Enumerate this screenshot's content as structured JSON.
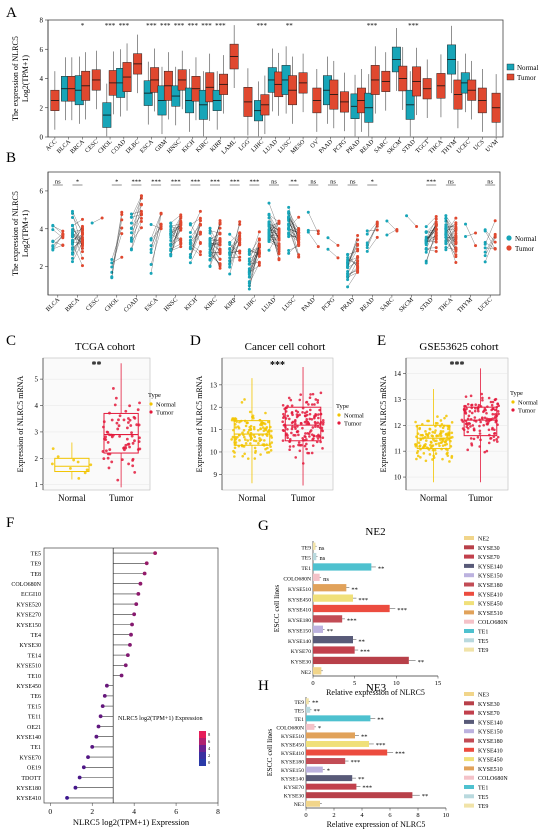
{
  "colors": {
    "normal": "#17a5b8",
    "tumor": "#e0482f",
    "tcga_normal": "#f2c400",
    "tcga_tumor": "#e31a3c",
    "cell_normal": "#f2c400",
    "cell_tumor": "#e31a3c",
    "lollipop": "#c8184a"
  },
  "panel_labels": {
    "a": "A",
    "b": "B",
    "c": "C",
    "d": "D",
    "e": "E",
    "f": "F",
    "g": "G",
    "h": "H"
  },
  "chart_data": [
    {
      "id": "A",
      "type": "box",
      "ylabel": "The expression of NLRC5",
      "ylabel2": "Log2(TPM+1)",
      "ylim": [
        0,
        8
      ],
      "yticks": [
        0,
        2,
        4,
        6,
        8
      ],
      "legend": {
        "normal": "Normal",
        "tumor": "Tumor",
        "position": "right"
      },
      "categories": [
        "ACC",
        "BLCA",
        "BRCA",
        "CESC",
        "CHOL",
        "COAD",
        "DLBC",
        "ESCA",
        "GBM",
        "HNSC",
        "KICH",
        "KIRC",
        "KIRP",
        "LAML",
        "LGG",
        "LIHC",
        "LUAD",
        "LUSC",
        "MESO",
        "OV",
        "PAAD",
        "PCPG",
        "PRAD",
        "READ",
        "SARC",
        "SKCM",
        "STAD",
        "TGCT",
        "THCA",
        "THYM",
        "UCEC",
        "UCS",
        "UVM"
      ],
      "normal_median": [
        null,
        3.3,
        3.2,
        null,
        1.5,
        3.7,
        null,
        3.0,
        2.5,
        2.8,
        2.5,
        2.2,
        2.5,
        null,
        null,
        1.8,
        3.9,
        3.9,
        null,
        null,
        3.2,
        null,
        2.1,
        2.0,
        null,
        5.3,
        2.2,
        null,
        null,
        5.3,
        3.7,
        null,
        null
      ],
      "tumor_median": [
        2.5,
        3.3,
        3.5,
        3.9,
        3.7,
        4.1,
        5.0,
        3.9,
        3.5,
        3.9,
        3.3,
        3.4,
        3.6,
        5.5,
        2.4,
        2.2,
        3.6,
        3.2,
        3.7,
        2.5,
        2.9,
        2.4,
        2.5,
        3.9,
        3.8,
        4.0,
        3.8,
        3.3,
        3.5,
        2.9,
        3.2,
        2.5,
        2.0
      ],
      "significance": [
        {
          "cat": "BRCA",
          "label": "*"
        },
        {
          "cat": "CHOL",
          "label": "***"
        },
        {
          "cat": "COAD",
          "label": "***"
        },
        {
          "cat": "ESCA",
          "label": "***"
        },
        {
          "cat": "GBM",
          "label": "***"
        },
        {
          "cat": "HNSC",
          "label": "***"
        },
        {
          "cat": "KICH",
          "label": "***"
        },
        {
          "cat": "KIRC",
          "label": "***"
        },
        {
          "cat": "KIRP",
          "label": "***"
        },
        {
          "cat": "LIHC",
          "label": "***"
        },
        {
          "cat": "LUSC",
          "label": "**"
        },
        {
          "cat": "READ",
          "label": "***"
        },
        {
          "cat": "STAD",
          "label": "***"
        }
      ]
    },
    {
      "id": "B",
      "type": "paired",
      "ylabel": "The expression of NLRC5",
      "ylabel2": "Log2(TPM+1)",
      "ylim": [
        0.5,
        7
      ],
      "yticks": [
        2,
        4,
        6
      ],
      "legend": {
        "normal": "Normal",
        "tumor": "Tumor",
        "position": "right"
      },
      "categories": [
        "BLCA",
        "BRCA",
        "CESC",
        "CHOL",
        "COAD",
        "ESCA",
        "HNSC",
        "KICH",
        "KIRC",
        "KIRP",
        "LIHC",
        "LUAD",
        "LUSC",
        "PAAD",
        "PCPG",
        "PRAD",
        "READ",
        "SARC",
        "SKCM",
        "STAD",
        "THCA",
        "THYM",
        "UCEC"
      ],
      "normal_center": [
        3.4,
        3.4,
        3.0,
        2.0,
        4.0,
        3.0,
        3.5,
        3.3,
        3.0,
        2.7,
        2.0,
        3.9,
        4.0,
        4.2,
        3.0,
        2.2,
        3.0,
        4.2,
        3.6,
        3.3,
        3.8,
        4.0,
        3.2
      ],
      "tumor_center": [
        3.4,
        3.6,
        3.8,
        3.8,
        4.8,
        4.0,
        3.9,
        3.8,
        3.2,
        3.2,
        2.7,
        3.6,
        3.4,
        3.2,
        2.5,
        2.5,
        4.0,
        4.2,
        3.8,
        4.0,
        3.4,
        3.8,
        3.2
      ],
      "pairs": [
        9,
        25,
        1,
        6,
        12,
        8,
        22,
        16,
        30,
        18,
        22,
        35,
        27,
        3,
        2,
        20,
        6,
        2,
        1,
        26,
        28,
        2,
        8
      ],
      "significance": [
        "ns",
        "*",
        "",
        "*",
        "***",
        "***",
        "***",
        "***",
        "***",
        "***",
        "***",
        "ns",
        "**",
        "ns",
        "ns",
        "ns",
        "*",
        "",
        "",
        "***",
        "ns",
        "",
        "ns"
      ]
    },
    {
      "id": "C",
      "type": "box",
      "title": "TCGA cohort",
      "ylabel": "Expression of NLRC5 mRNA",
      "categories": [
        "Normal",
        "Tumor"
      ],
      "yticks": [
        1,
        2,
        3,
        4,
        5
      ],
      "ylim": [
        0.8,
        5.8
      ],
      "box": [
        {
          "q1": 1.5,
          "median": 1.7,
          "q3": 2.0,
          "min": 1.2,
          "max": 2.6
        },
        {
          "q1": 2.2,
          "median": 2.9,
          "q3": 3.7,
          "min": 0.9,
          "max": 5.6
        }
      ],
      "n": [
        10,
        70
      ],
      "legend_title": "Type",
      "legend": [
        "Normal",
        "Tumor"
      ],
      "significance": "**"
    },
    {
      "id": "D",
      "type": "box",
      "title": "Cancer cell cohort",
      "ylabel": "Expression of NLRC5 mRNA",
      "categories": [
        "Normal",
        "Tumor"
      ],
      "yticks": [
        9,
        10,
        11,
        12,
        13
      ],
      "ylim": [
        8.3,
        14.2
      ],
      "box": [
        {
          "q1": 10.3,
          "median": 10.8,
          "q3": 11.4,
          "min": 8.6,
          "max": 13.3
        },
        {
          "q1": 10.5,
          "median": 11.2,
          "q3": 12.0,
          "min": 8.5,
          "max": 13.8
        }
      ],
      "n": [
        130,
        160
      ],
      "legend_title": "Type",
      "legend": [
        "Normal",
        "Tumor"
      ],
      "significance": "***"
    },
    {
      "id": "E",
      "type": "box",
      "title": "GSE53625 cohort",
      "ylabel": "Expression of NLRC5 mRNA",
      "categories": [
        "Normal",
        "Tumor"
      ],
      "yticks": [
        10,
        11,
        12,
        13,
        14
      ],
      "ylim": [
        9.5,
        14.6
      ],
      "box": [
        {
          "q1": 11.1,
          "median": 11.5,
          "q3": 12.0,
          "min": 9.8,
          "max": 13.4
        },
        {
          "q1": 11.6,
          "median": 12.2,
          "q3": 12.7,
          "min": 9.8,
          "max": 14.2
        }
      ],
      "n": [
        130,
        130
      ],
      "legend_title": "Type",
      "legend": [
        "Normal",
        "Tumor"
      ],
      "significance": "***"
    },
    {
      "id": "F",
      "type": "lollipop",
      "xlabel": "NLRC5 log2(TPM+1) Expression",
      "legend_title": "NLRC5 log2(TPM+1) Expression",
      "legend_ticks": [
        8,
        6,
        4,
        2,
        0
      ],
      "xlim": [
        -0.3,
        8
      ],
      "xticks": [
        0,
        2,
        4,
        6,
        8
      ],
      "baseline": 3.0,
      "categories": [
        "TE5",
        "TE9",
        "TE8",
        "COLO680N",
        "ECGI10",
        "KYSE520",
        "KYSE270",
        "KYSE150",
        "TE4",
        "KYSE30",
        "TE14",
        "KYSE510",
        "TE10",
        "KYSE450",
        "TE6",
        "TE15",
        "TE11",
        "OE21",
        "KYSE140",
        "TE1",
        "KYSE70",
        "OE19",
        "TDOTT",
        "KYSE180",
        "KYSE410"
      ],
      "values": [
        5.0,
        4.6,
        4.5,
        4.3,
        4.2,
        4.1,
        4.0,
        3.9,
        3.85,
        3.8,
        3.7,
        3.6,
        3.4,
        2.7,
        2.6,
        2.5,
        2.4,
        2.3,
        2.2,
        2.0,
        1.8,
        1.6,
        1.4,
        1.2,
        0.8
      ]
    },
    {
      "id": "G",
      "type": "bar",
      "title": "NE2",
      "ylabel": "ESCC cell lines",
      "xlabel": "Relative expression of NLRC5",
      "xlim": [
        0,
        15
      ],
      "xticks": [
        0,
        5,
        10,
        15
      ],
      "categories": [
        "TE9",
        "TE5",
        "TE1",
        "COLO680N",
        "KYSE510",
        "KYSE450",
        "KYSE410",
        "KYSE180",
        "KYSE150",
        "KYSE140",
        "KYSE70",
        "KYSE30",
        "NE2"
      ],
      "values": [
        0.3,
        0.4,
        7.0,
        0.8,
        4.0,
        4.8,
        9.2,
        3.5,
        1.2,
        4.8,
        5.0,
        11.5,
        1.0
      ],
      "significance": [
        "ns",
        "ns",
        "**",
        "ns",
        "**",
        "***",
        "***",
        "***",
        "**",
        "**",
        "***",
        "**",
        ""
      ],
      "bar_colors": [
        "#f1e3a8",
        "#b9d9de",
        "#4ec1cf",
        "#f4c2c8",
        "#e1a25a",
        "#f0e07a",
        "#ec4c3f",
        "#c24c55",
        "#bcb2df",
        "#585a78",
        "#c2404c",
        "#b84049",
        "#f1d58a"
      ],
      "legend": [
        "NE2",
        "KYSE30",
        "KYSE70",
        "KYSE140",
        "KYSE150",
        "KYSE180",
        "KYSE410",
        "KYSE450",
        "KYSE510",
        "COLO680N",
        "TE1",
        "TE5",
        "TE9"
      ],
      "legend_colors": [
        "#f1d58a",
        "#b84049",
        "#c2404c",
        "#585a78",
        "#bcb2df",
        "#c24c55",
        "#ec4c3f",
        "#f0e07a",
        "#e1a25a",
        "#f4c2c8",
        "#4ec1cf",
        "#b9d9de",
        "#f1e3a8"
      ]
    },
    {
      "id": "H",
      "type": "bar",
      "title": "NE3",
      "ylabel": "ESCC cell lines",
      "xlabel": "Relative expression of NLRC5",
      "xlim": [
        0,
        10
      ],
      "xticks": [
        0,
        2,
        4,
        6,
        8,
        10
      ],
      "categories": [
        "TE9",
        "TE5",
        "TE1",
        "COLO680N",
        "KYSE510",
        "KYSE450",
        "KYSE410",
        "KYSE180",
        "KYSE150",
        "KYSE140",
        "KYSE70",
        "KYSE30",
        "NE3"
      ],
      "values": [
        0.2,
        0.3,
        4.6,
        0.6,
        3.5,
        4.5,
        5.8,
        2.8,
        1.2,
        3.3,
        3.6,
        7.6,
        1.0
      ],
      "significance": [
        "**",
        "**",
        "**",
        "*",
        "**",
        "***",
        "***",
        "***",
        "*",
        "**",
        "***",
        "**",
        ""
      ],
      "bar_colors": [
        "#f1e3a8",
        "#b9d9de",
        "#4ec1cf",
        "#f4c2c8",
        "#e1a25a",
        "#f0e07a",
        "#ec4c3f",
        "#c24c55",
        "#bcb2df",
        "#585a78",
        "#c2404c",
        "#b84049",
        "#f1d58a"
      ],
      "legend": [
        "NE3",
        "KYSE30",
        "KYSE70",
        "KYSE140",
        "KYSE150",
        "KYSE180",
        "KYSE410",
        "KYSE450",
        "KYSE510",
        "COLO680N",
        "TE1",
        "TE5",
        "TE9"
      ],
      "legend_colors": [
        "#f1d58a",
        "#b84049",
        "#c2404c",
        "#585a78",
        "#bcb2df",
        "#c24c55",
        "#ec4c3f",
        "#f0e07a",
        "#e1a25a",
        "#f4c2c8",
        "#4ec1cf",
        "#b9d9de",
        "#f1e3a8"
      ]
    }
  ]
}
